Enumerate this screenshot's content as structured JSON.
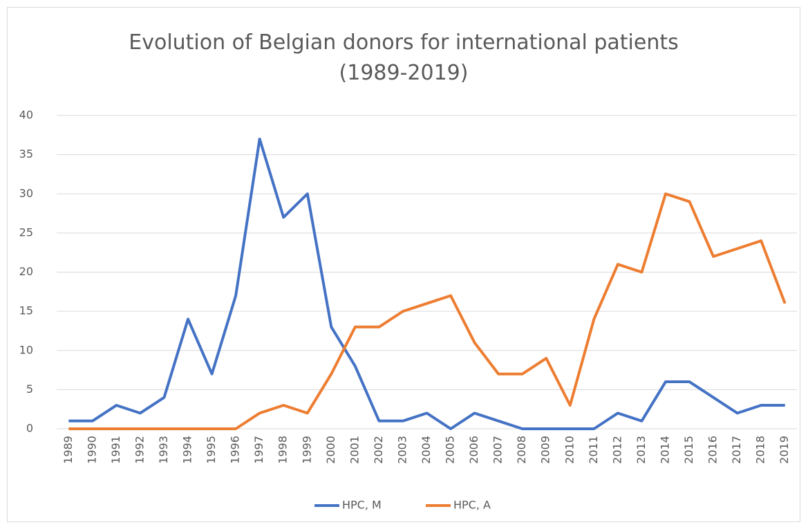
{
  "chart_data": {
    "type": "line",
    "title": "Evolution of Belgian donors for international patients (1989-2019)",
    "categories": [
      "1989",
      "1990",
      "1991",
      "1992",
      "1993",
      "1994",
      "1995",
      "1996",
      "1997",
      "1998",
      "1999",
      "2000",
      "2001",
      "2002",
      "2003",
      "2004",
      "2005",
      "2006",
      "2007",
      "2008",
      "2009",
      "2010",
      "2011",
      "2012",
      "2013",
      "2014",
      "2015",
      "2016",
      "2017",
      "2018",
      "2019"
    ],
    "series": [
      {
        "name": "HPC, M",
        "color": "#4472c4",
        "values": [
          1,
          1,
          3,
          2,
          4,
          14,
          7,
          17,
          37,
          27,
          30,
          13,
          8,
          1,
          1,
          2,
          0,
          2,
          1,
          0,
          0,
          0,
          0,
          2,
          1,
          6,
          6,
          4,
          2,
          3,
          3
        ]
      },
      {
        "name": "HPC, A",
        "color": "#ed7d31",
        "values": [
          0,
          0,
          0,
          0,
          0,
          0,
          0,
          0,
          2,
          3,
          2,
          7,
          13,
          13,
          15,
          16,
          17,
          11,
          7,
          7,
          9,
          3,
          14,
          21,
          20,
          30,
          29,
          22,
          23,
          24,
          16
        ]
      }
    ],
    "ylim": [
      0,
      40
    ],
    "yticks": [
      0,
      5,
      10,
      15,
      20,
      25,
      30,
      35,
      40
    ],
    "grid": true,
    "legend": "bottom"
  }
}
